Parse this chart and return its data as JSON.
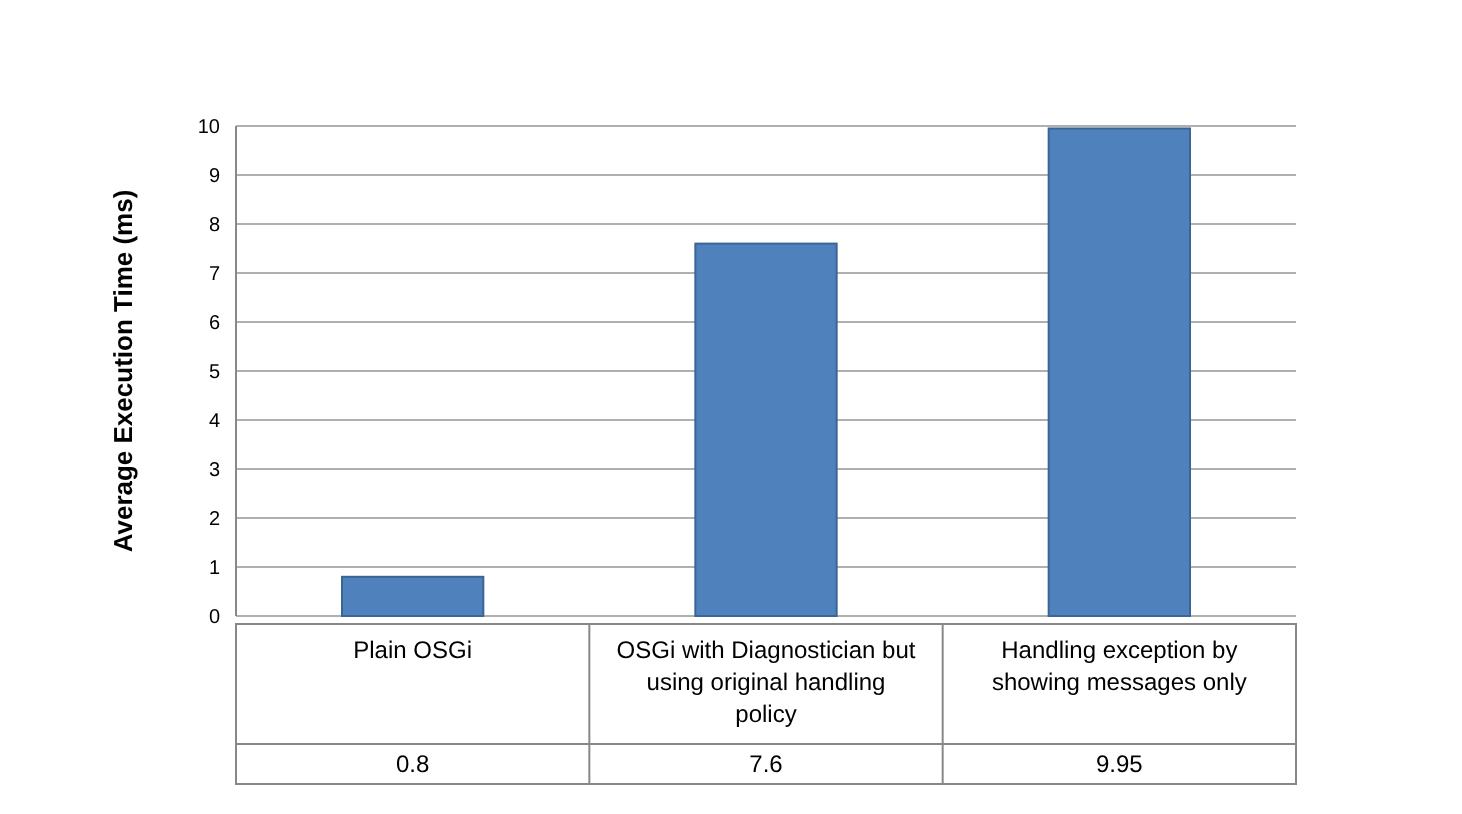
{
  "chart_data": {
    "type": "bar",
    "ylabel": "Average Execution Time (ms)",
    "categories": [
      "Plain OSGi",
      "OSGi with Diagnostician but using original handling policy",
      "Handling exception by showing messages only"
    ],
    "values": [
      0.8,
      7.6,
      9.95
    ],
    "color": "#4f81bd",
    "ylim": [
      0,
      10
    ],
    "yticks": [
      0,
      1,
      2,
      3,
      4,
      5,
      6,
      7,
      8,
      9,
      10
    ],
    "grid": "y",
    "data_labels": true
  }
}
